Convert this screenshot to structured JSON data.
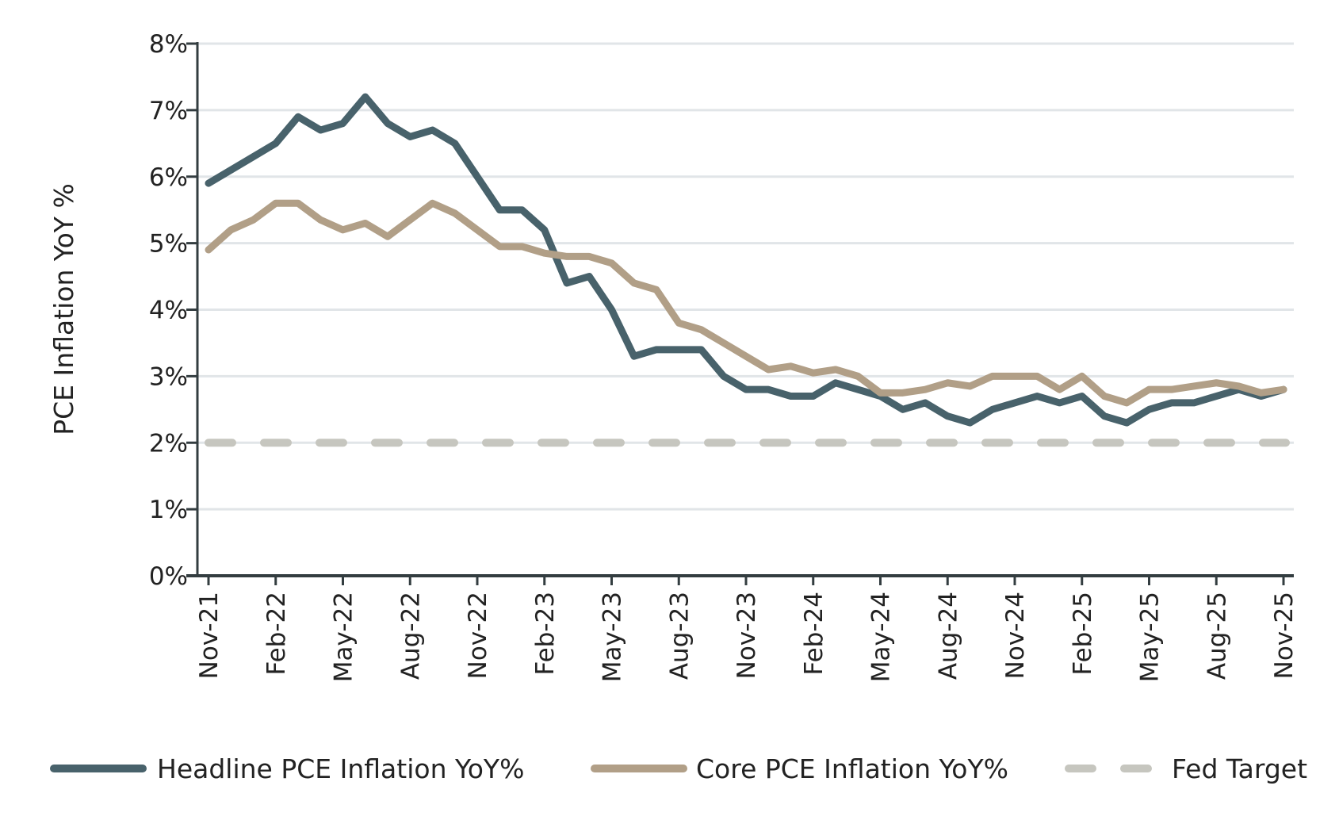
{
  "chart_data": {
    "type": "line",
    "title": "",
    "xlabel": "",
    "ylabel": "PCE Inflation YoY %",
    "ylim": [
      0,
      8
    ],
    "yticks": [
      "0%",
      "1%",
      "2%",
      "3%",
      "4%",
      "5%",
      "6%",
      "7%",
      "8%"
    ],
    "grid": true,
    "legend_position": "bottom",
    "x": [
      "Nov-21",
      "Dec-21",
      "Jan-22",
      "Feb-22",
      "Mar-22",
      "Apr-22",
      "May-22",
      "Jun-22",
      "Jul-22",
      "Aug-22",
      "Sep-22",
      "Oct-22",
      "Nov-22",
      "Dec-22",
      "Jan-23",
      "Feb-23",
      "Mar-23",
      "Apr-23",
      "May-23",
      "Jun-23",
      "Jul-23",
      "Aug-23",
      "Sep-23",
      "Oct-23",
      "Nov-23",
      "Dec-23",
      "Jan-24",
      "Feb-24",
      "Mar-24",
      "Apr-24",
      "May-24",
      "Jun-24",
      "Jul-24",
      "Aug-24",
      "Sep-24",
      "Oct-24",
      "Nov-24",
      "Dec-24",
      "Jan-25",
      "Feb-25",
      "Mar-25",
      "Apr-25",
      "May-25",
      "Jun-25",
      "Jul-25",
      "Aug-25",
      "Sep-25",
      "Oct-25",
      "Nov-25"
    ],
    "xtick_labels": [
      "Nov-21",
      "Feb-22",
      "May-22",
      "Aug-22",
      "Nov-22",
      "Feb-23",
      "May-23",
      "Aug-23",
      "Nov-23",
      "Feb-24",
      "May-24",
      "Aug-24",
      "Nov-24",
      "Feb-25",
      "May-25",
      "Aug-25",
      "Nov-25"
    ],
    "series": [
      {
        "name": "Headline PCE Inflation YoY%",
        "color": "#48626b",
        "dashed": false,
        "values": [
          5.9,
          6.1,
          6.3,
          6.5,
          6.9,
          6.7,
          6.8,
          7.2,
          6.8,
          6.6,
          6.7,
          6.5,
          6.0,
          5.5,
          5.5,
          5.2,
          4.4,
          4.5,
          4.0,
          3.3,
          3.4,
          3.4,
          3.4,
          3.0,
          2.8,
          2.8,
          2.7,
          2.7,
          2.9,
          2.8,
          2.7,
          2.5,
          2.6,
          2.4,
          2.3,
          2.5,
          2.6,
          2.7,
          2.6,
          2.7,
          2.4,
          2.3,
          2.5,
          2.6,
          2.6,
          2.7,
          2.8,
          2.7,
          2.8
        ]
      },
      {
        "name": "Core PCE Inflation YoY%",
        "color": "#b19f87",
        "dashed": false,
        "values": [
          4.9,
          5.2,
          5.35,
          5.6,
          5.6,
          5.35,
          5.2,
          5.3,
          5.1,
          5.35,
          5.6,
          5.45,
          5.2,
          4.95,
          4.95,
          4.85,
          4.8,
          4.8,
          4.7,
          4.4,
          4.3,
          3.8,
          3.7,
          3.5,
          3.3,
          3.1,
          3.15,
          3.05,
          3.1,
          3.0,
          2.75,
          2.75,
          2.8,
          2.9,
          2.85,
          3.0,
          3.0,
          3.0,
          2.8,
          3.0,
          2.7,
          2.6,
          2.8,
          2.8,
          2.85,
          2.9,
          2.85,
          2.75,
          2.8
        ]
      },
      {
        "name": "Fed Target",
        "color": "#c6c6bf",
        "dashed": true,
        "constant": 2
      }
    ]
  }
}
